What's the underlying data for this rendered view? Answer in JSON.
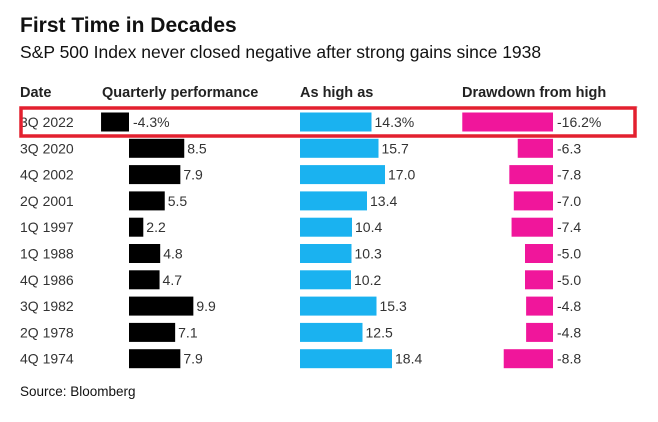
{
  "chart_data": {
    "type": "bar",
    "title": "First Time in Decades",
    "subtitle": "S&P 500 Index never closed negative after strong gains since 1938",
    "source": "Source: Bloomberg",
    "columns": [
      "Date",
      "Quarterly performance",
      "As high as",
      "Drawdown from high"
    ],
    "highlight_row": 0,
    "rows": [
      {
        "date": "3Q 2022",
        "quarterly": -4.3,
        "quarterly_label": "-4.3%",
        "high": 14.3,
        "high_label": "14.3%",
        "drawdown": -16.2,
        "drawdown_label": "-16.2%"
      },
      {
        "date": "3Q 2020",
        "quarterly": 8.5,
        "quarterly_label": "8.5",
        "high": 15.7,
        "high_label": "15.7",
        "drawdown": -6.3,
        "drawdown_label": "-6.3"
      },
      {
        "date": "4Q 2002",
        "quarterly": 7.9,
        "quarterly_label": "7.9",
        "high": 17.0,
        "high_label": "17.0",
        "drawdown": -7.8,
        "drawdown_label": "-7.8"
      },
      {
        "date": "2Q 2001",
        "quarterly": 5.5,
        "quarterly_label": "5.5",
        "high": 13.4,
        "high_label": "13.4",
        "drawdown": -7.0,
        "drawdown_label": "-7.0"
      },
      {
        "date": "1Q 1997",
        "quarterly": 2.2,
        "quarterly_label": "2.2",
        "high": 10.4,
        "high_label": "10.4",
        "drawdown": -7.4,
        "drawdown_label": "-7.4"
      },
      {
        "date": "1Q 1988",
        "quarterly": 4.8,
        "quarterly_label": "4.8",
        "high": 10.3,
        "high_label": "10.3",
        "drawdown": -5.0,
        "drawdown_label": "-5.0"
      },
      {
        "date": "4Q 1986",
        "quarterly": 4.7,
        "quarterly_label": "4.7",
        "high": 10.2,
        "high_label": "10.2",
        "drawdown": -5.0,
        "drawdown_label": "-5.0"
      },
      {
        "date": "3Q 1982",
        "quarterly": 9.9,
        "quarterly_label": "9.9",
        "high": 15.3,
        "high_label": "15.3",
        "drawdown": -4.8,
        "drawdown_label": "-4.8"
      },
      {
        "date": "2Q 1978",
        "quarterly": 7.1,
        "quarterly_label": "7.1",
        "high": 12.5,
        "high_label": "12.5",
        "drawdown": -4.8,
        "drawdown_label": "-4.8"
      },
      {
        "date": "4Q 1974",
        "quarterly": 7.9,
        "quarterly_label": "7.9",
        "high": 18.4,
        "high_label": "18.4",
        "drawdown": -8.8,
        "drawdown_label": "-8.8"
      }
    ],
    "colors": {
      "quarterly": "#000000",
      "high": "#1ab2f0",
      "drawdown": "#f0169b",
      "highlight_border": "#e3202f",
      "separator": "#cfcfcf"
    }
  }
}
